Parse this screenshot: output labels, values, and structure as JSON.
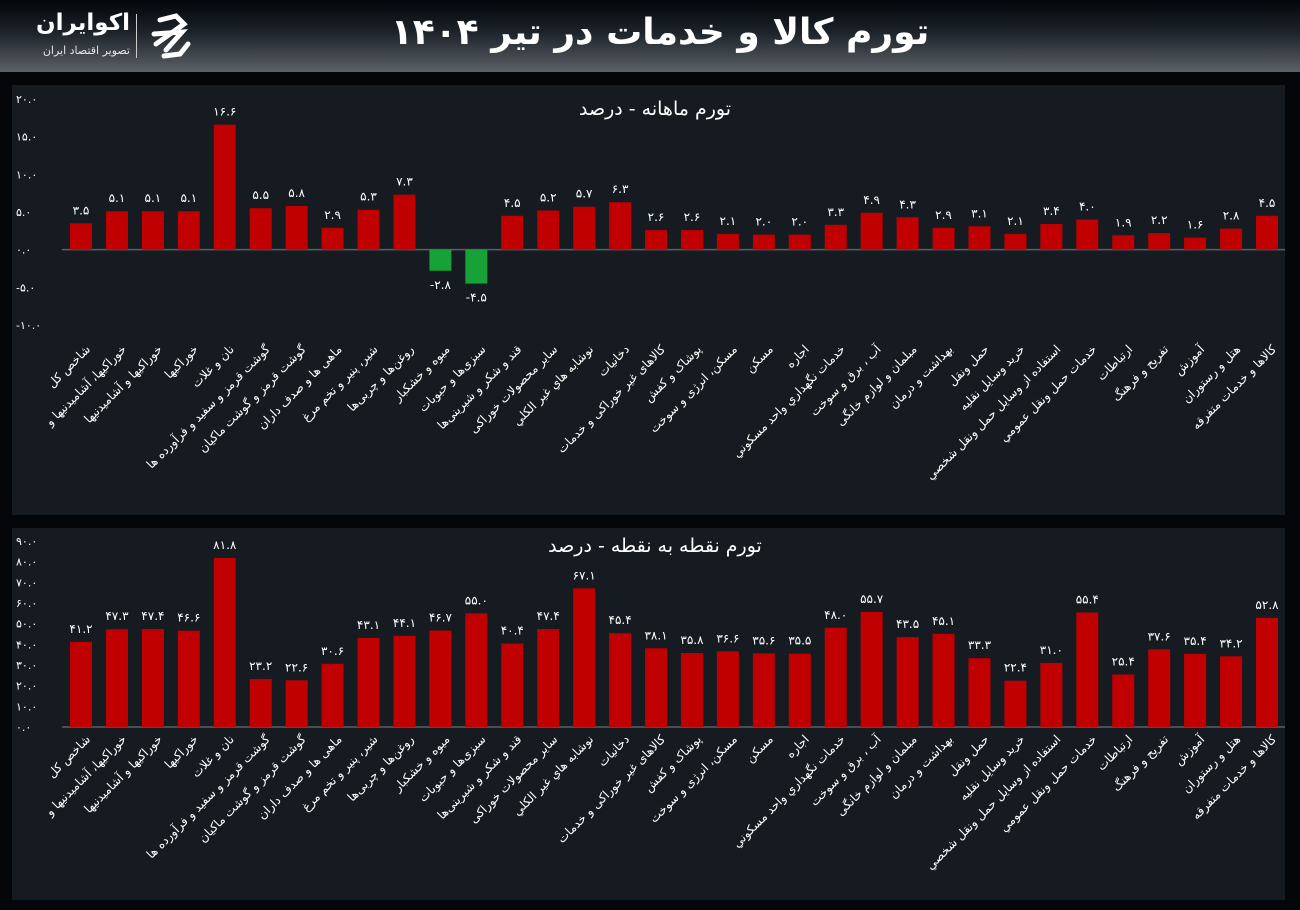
{
  "header": {
    "title": "تورم کالا و خدمات در تیر ۱۴۰۴",
    "logo_name": "اکوایران",
    "logo_tagline": "تصویر اقتصاد ایران"
  },
  "colors": {
    "positive": "#c00000",
    "negative": "#17a238",
    "panel": "#161b21",
    "background": "#04060a"
  },
  "chart_data": [
    {
      "type": "bar",
      "title": "تورم ماهانه - درصد",
      "ylim": [
        -10,
        20
      ],
      "yticks": [
        20,
        15,
        10,
        5,
        0,
        -5,
        -10
      ],
      "grid": false,
      "categories": [
        "شاخص کل",
        "خوراکیها، آشامیدنیها و",
        "خوراکیها و آشامیدنیها",
        "خوراکیها",
        "نان و غلات",
        "گوشت قرمز و سفید و فرآورده ها",
        "گوشت قرمز و گوشت ماکیان",
        "ماهی ها و صدف داران",
        "شیر، پنیر و تخم مرغ",
        "روغن‌ها و چربی‌ها",
        "میوه و خشکبار",
        "سبزی‌ها و حبوبات",
        "قند و شکر و شیرینی‌ها",
        "سایر محصولات خوراکی",
        "نوشابه هاي غير الكلي",
        "دخانیات",
        "کالاهای غیر خوراکی و خدمات",
        "پوشاک و کفش",
        "مسکن، انرژی و سوخت",
        "مسکن",
        "اجاره",
        "خدمات نگهداري واحد مسكوني",
        "آب ، برق و سوخت",
        "مبلمان و لوازم خانگی",
        "بهداشت و درمان",
        "حمل ونقل",
        "خريد وسايل نقليه",
        "استفاده از وسايل حمل ونقل شخصي",
        "خدمات حمل ونقل عمومي",
        "ارتباطات",
        "تفریح و فرهنگ",
        "آموزش",
        "هتل و رستوران",
        "کالاها و خدمات متفرقه"
      ],
      "values": [
        3.5,
        5.1,
        5.1,
        5.1,
        16.6,
        5.5,
        5.8,
        2.9,
        5.3,
        7.3,
        -2.8,
        -4.5,
        4.5,
        5.2,
        5.7,
        6.3,
        2.6,
        2.6,
        2.1,
        2.0,
        2.0,
        3.3,
        4.9,
        4.3,
        2.9,
        3.1,
        2.1,
        3.4,
        4.0,
        1.9,
        2.2,
        1.6,
        2.8,
        4.5
      ]
    },
    {
      "type": "bar",
      "title": "تورم نقطه به نقطه - درصد",
      "ylim": [
        0,
        90
      ],
      "yticks": [
        90,
        80,
        70,
        60,
        50,
        40,
        30,
        20,
        10,
        0
      ],
      "grid": false,
      "categories": [
        "شاخص کل",
        "خوراکیها، آشامیدنیها و",
        "خوراکیها و آشامیدنیها",
        "خوراکیها",
        "نان و غلات",
        "گوشت قرمز و سفید و فرآورده ها",
        "گوشت قرمز و گوشت ماکیان",
        "ماهی ها و صدف داران",
        "شیر، پنیر و تخم مرغ",
        "روغن‌ها و چربی‌ها",
        "میوه و خشکبار",
        "سبزی‌ها و حبوبات",
        "قند و شکر و شیرینی‌ها",
        "سایر محصولات خوراکی",
        "نوشابه هاي غير الكلي",
        "دخانیات",
        "کالاهای غیر خوراکی و خدمات",
        "پوشاک و کفش",
        "مسکن، انرژی و سوخت",
        "مسکن",
        "اجاره",
        "خدمات نگهداري واحد مسكوني",
        "آب ، برق و سوخت",
        "مبلمان و لوازم خانگی",
        "بهداشت و درمان",
        "حمل ونقل",
        "خريد وسايل نقليه",
        "استفاده از وسايل حمل ونقل شخصي",
        "خدمات حمل ونقل عمومي",
        "ارتباطات",
        "تفریح و فرهنگ",
        "آموزش",
        "هتل و رستوران",
        "کالاها و خدمات متفرقه"
      ],
      "values": [
        41.2,
        47.3,
        47.4,
        46.6,
        81.8,
        23.2,
        22.6,
        30.6,
        43.1,
        44.1,
        46.7,
        55.0,
        40.4,
        47.4,
        67.1,
        45.4,
        38.1,
        35.8,
        36.6,
        35.6,
        35.5,
        48.0,
        55.7,
        43.5,
        45.1,
        33.3,
        22.4,
        31.0,
        55.4,
        25.4,
        37.6,
        35.4,
        34.2,
        52.8
      ]
    }
  ]
}
